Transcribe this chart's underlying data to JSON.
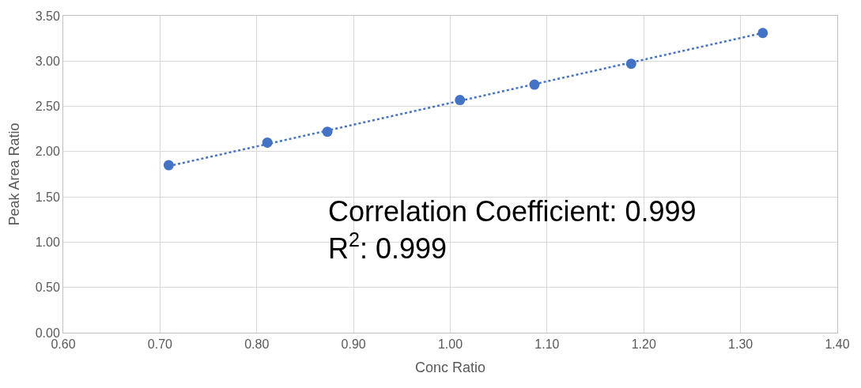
{
  "chart_data": {
    "type": "scatter",
    "xlabel": "Conc Ratio",
    "ylabel": "Peak Area Ratio",
    "series": [
      {
        "color": "#4472c4",
        "x": [
          0.709,
          0.811,
          0.873,
          1.01,
          1.087,
          1.187,
          1.323
        ],
        "values": [
          1.85,
          2.1,
          2.22,
          2.57,
          2.74,
          2.97,
          3.31
        ],
        "marker": "circle"
      },
      {
        "type": "line",
        "color": "#4472c4",
        "x": [
          0.709,
          1.323
        ],
        "values": [
          1.84,
          3.31
        ],
        "line_style": "dotted",
        "marker": "none"
      }
    ],
    "xlim": [
      0.6,
      1.4
    ],
    "xticks": [
      {
        "value": 0.6,
        "label": "0.60"
      },
      {
        "value": 0.7,
        "label": "0.70"
      },
      {
        "value": 0.8,
        "label": "0.80"
      },
      {
        "value": 0.9,
        "label": "0.90"
      },
      {
        "value": 1.0,
        "label": "1.00"
      },
      {
        "value": 1.1,
        "label": "1.10"
      },
      {
        "value": 1.2,
        "label": "1.20"
      },
      {
        "value": 1.3,
        "label": "1.30"
      },
      {
        "value": 1.4,
        "label": "1.40"
      }
    ],
    "ylim": [
      0,
      3.5
    ],
    "yticks": [
      {
        "value": 0,
        "label": "0.00"
      },
      {
        "value": 0.5,
        "label": "0.50"
      },
      {
        "value": 1.0,
        "label": "1.00"
      },
      {
        "value": 1.5,
        "label": "1.50"
      },
      {
        "value": 2.0,
        "label": "2.00"
      },
      {
        "value": 2.5,
        "label": "2.50"
      },
      {
        "value": 3.0,
        "label": "3.00"
      },
      {
        "value": 3.5,
        "label": "3.50"
      }
    ],
    "grid": true,
    "annotations": [
      "Correlation Coefficient: 0.999\nR$^{2}$: 0.999"
    ]
  }
}
